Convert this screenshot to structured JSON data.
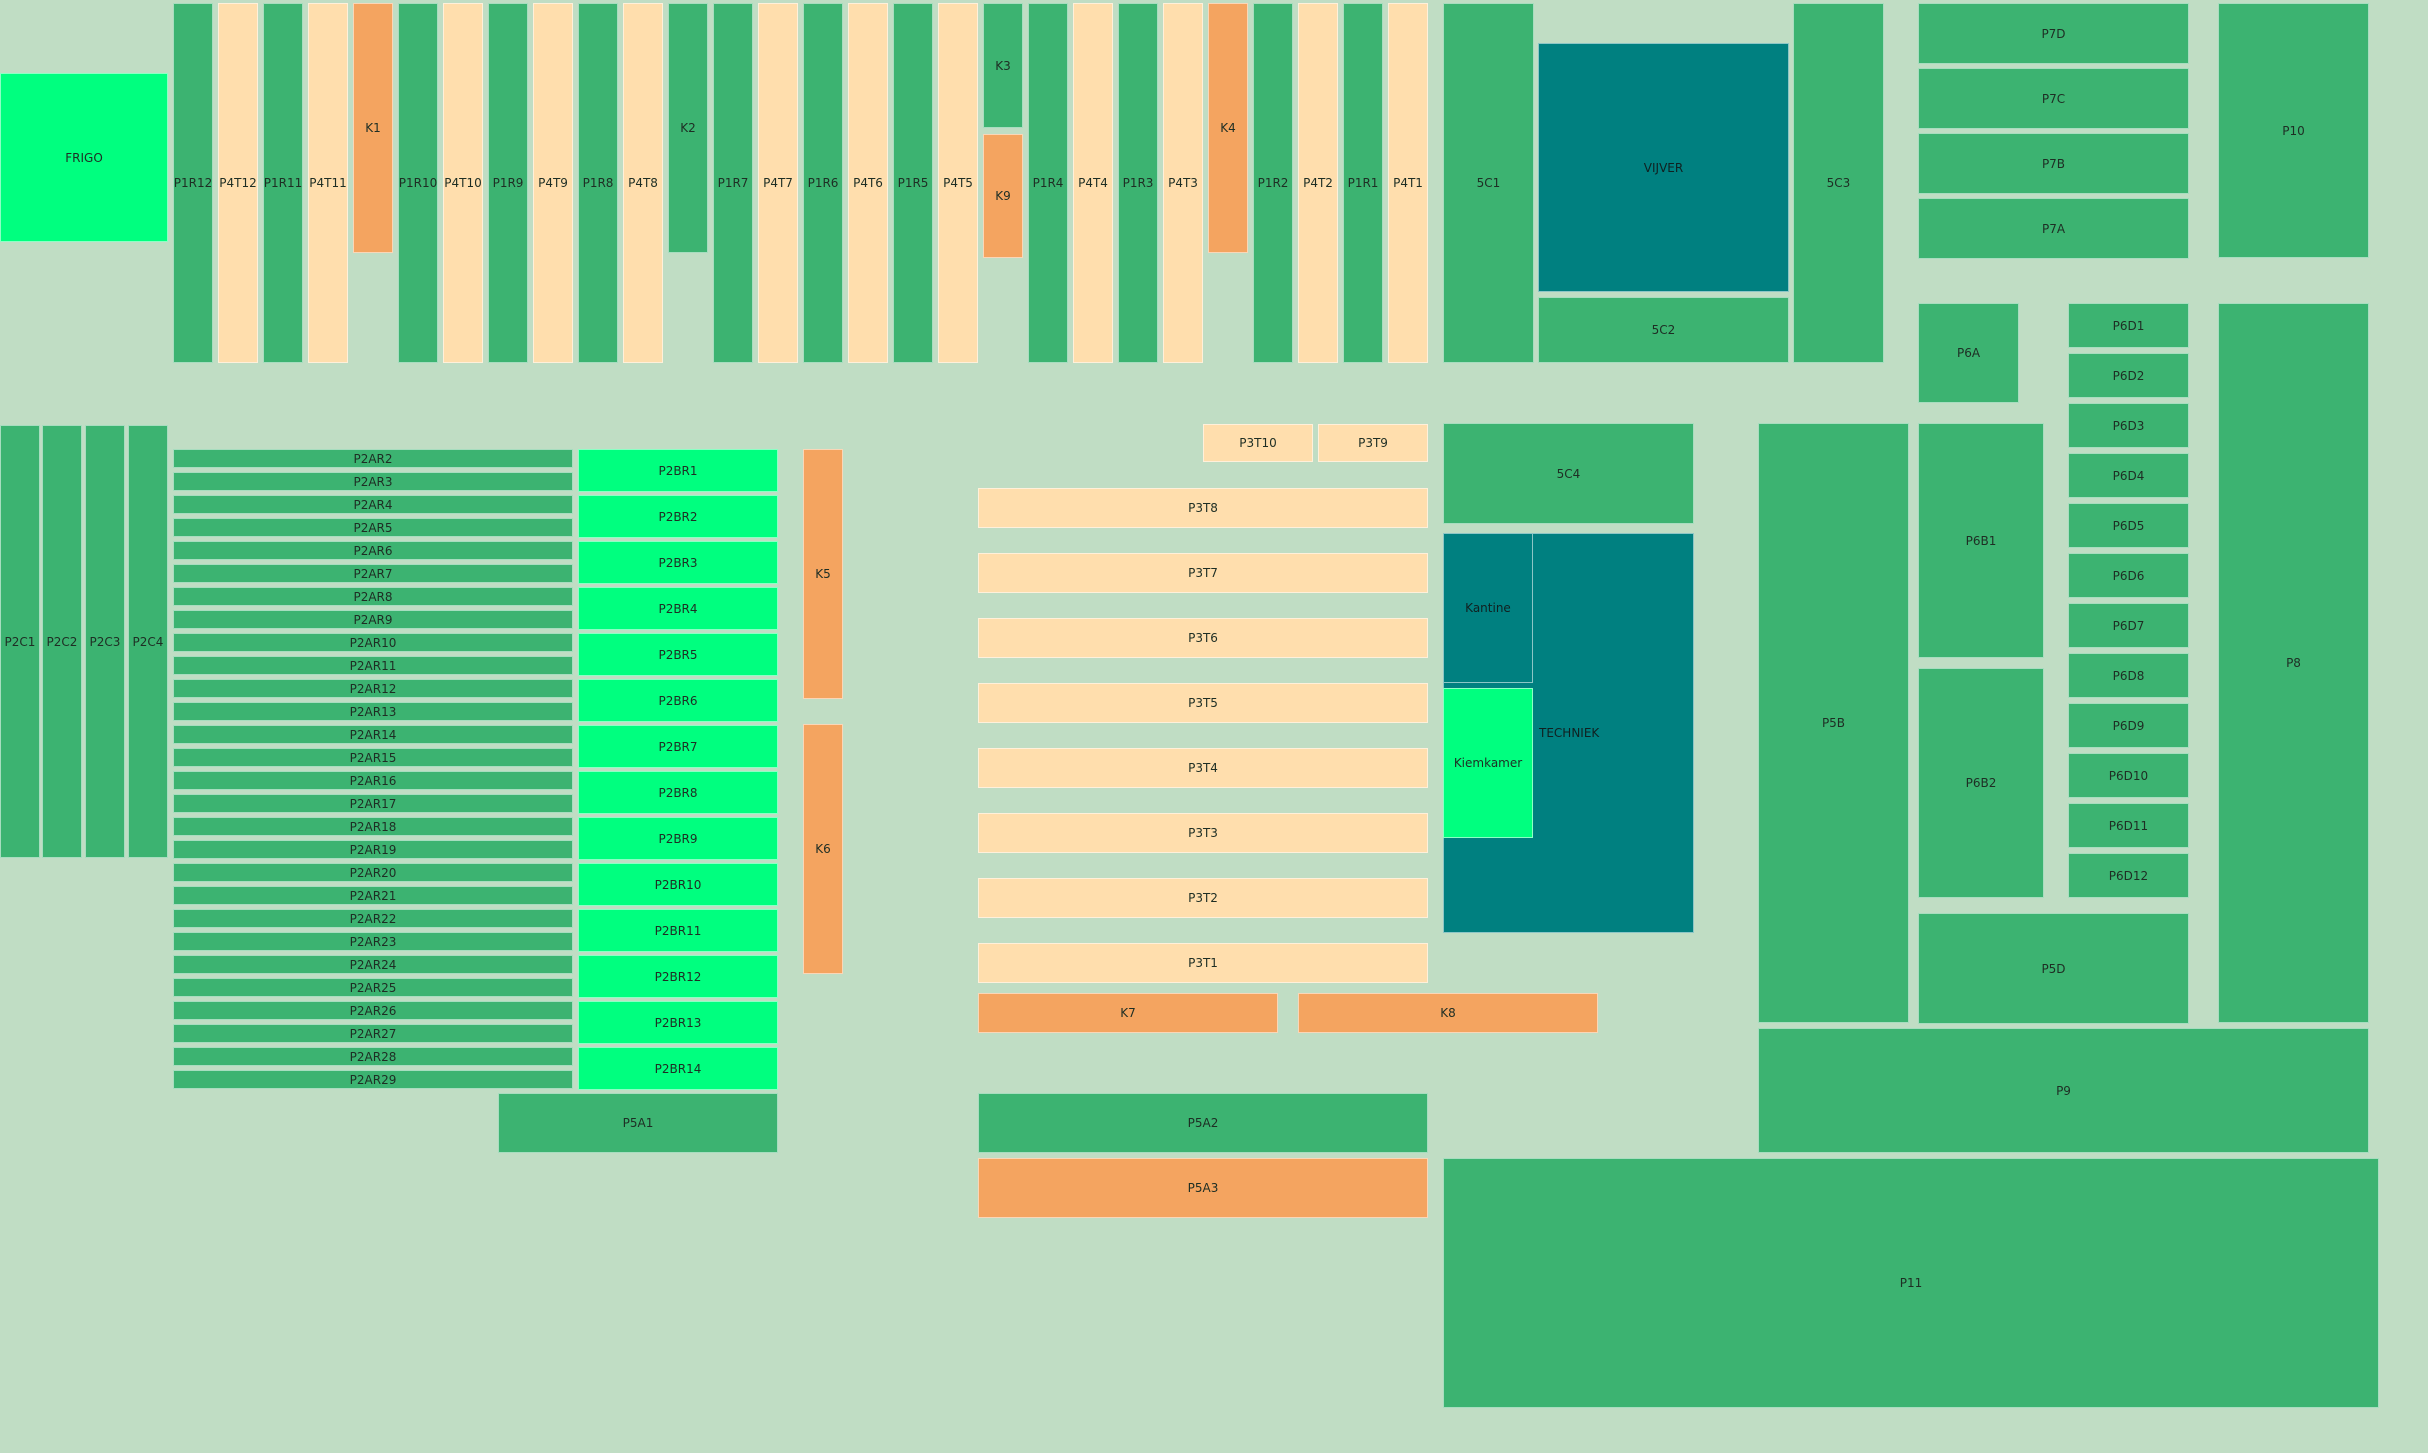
{
  "map": {
    "legend_colors": {
      "green": "#3cb371",
      "spring_green": "#00ff7f",
      "peach": "#ffdead",
      "orange": "#f4a460",
      "teal": "#008080",
      "background": "#c0ddc4"
    },
    "zones": [
      {
        "id": "FRIGO",
        "color": "b"
      },
      {
        "id": "P1R12",
        "color": "g"
      },
      {
        "id": "P4T12",
        "color": "p"
      },
      {
        "id": "P1R11",
        "color": "g"
      },
      {
        "id": "P4T11",
        "color": "p"
      },
      {
        "id": "K1",
        "color": "o"
      },
      {
        "id": "P1R10",
        "color": "g"
      },
      {
        "id": "P4T10",
        "color": "p"
      },
      {
        "id": "P1R9",
        "color": "g"
      },
      {
        "id": "P4T9",
        "color": "p"
      },
      {
        "id": "P1R8",
        "color": "g"
      },
      {
        "id": "P4T8",
        "color": "p"
      },
      {
        "id": "K2",
        "color": "g"
      },
      {
        "id": "P1R7",
        "color": "g"
      },
      {
        "id": "P4T7",
        "color": "p"
      },
      {
        "id": "P1R6",
        "color": "g"
      },
      {
        "id": "P4T6",
        "color": "p"
      },
      {
        "id": "P1R5",
        "color": "g"
      },
      {
        "id": "P4T5",
        "color": "p"
      },
      {
        "id": "K3",
        "color": "g"
      },
      {
        "id": "K9",
        "color": "o"
      },
      {
        "id": "P1R4",
        "color": "g"
      },
      {
        "id": "P4T4",
        "color": "p"
      },
      {
        "id": "P1R3",
        "color": "g"
      },
      {
        "id": "P4T3",
        "color": "p"
      },
      {
        "id": "K4",
        "color": "o"
      },
      {
        "id": "P1R2",
        "color": "g"
      },
      {
        "id": "P4T2",
        "color": "p"
      },
      {
        "id": "P1R1",
        "color": "g"
      },
      {
        "id": "P4T1",
        "color": "p"
      },
      {
        "id": "5C1",
        "color": "g"
      },
      {
        "id": "VIJVER",
        "color": "t"
      },
      {
        "id": "5C2",
        "color": "g"
      },
      {
        "id": "5C3",
        "color": "g"
      },
      {
        "id": "P7D",
        "color": "g"
      },
      {
        "id": "P7C",
        "color": "g"
      },
      {
        "id": "P7B",
        "color": "g"
      },
      {
        "id": "P7A",
        "color": "g"
      },
      {
        "id": "P10",
        "color": "g"
      },
      {
        "id": "P2C1",
        "color": "g"
      },
      {
        "id": "P2C2",
        "color": "g"
      },
      {
        "id": "P2C3",
        "color": "g"
      },
      {
        "id": "P2C4",
        "color": "g"
      },
      {
        "id": "P2AR2",
        "color": "g"
      },
      {
        "id": "P2AR3",
        "color": "g"
      },
      {
        "id": "P2AR4",
        "color": "g"
      },
      {
        "id": "P2AR5",
        "color": "g"
      },
      {
        "id": "P2AR6",
        "color": "g"
      },
      {
        "id": "P2AR7",
        "color": "g"
      },
      {
        "id": "P2AR8",
        "color": "g"
      },
      {
        "id": "P2AR9",
        "color": "g"
      },
      {
        "id": "P2AR10",
        "color": "g"
      },
      {
        "id": "P2AR11",
        "color": "g"
      },
      {
        "id": "P2AR12",
        "color": "g"
      },
      {
        "id": "P2AR13",
        "color": "g"
      },
      {
        "id": "P2AR14",
        "color": "g"
      },
      {
        "id": "P2AR15",
        "color": "g"
      },
      {
        "id": "P2AR16",
        "color": "g"
      },
      {
        "id": "P2AR17",
        "color": "g"
      },
      {
        "id": "P2AR18",
        "color": "g"
      },
      {
        "id": "P2AR19",
        "color": "g"
      },
      {
        "id": "P2AR20",
        "color": "g"
      },
      {
        "id": "P2AR21",
        "color": "g"
      },
      {
        "id": "P2AR22",
        "color": "g"
      },
      {
        "id": "P2AR23",
        "color": "g"
      },
      {
        "id": "P2AR24",
        "color": "g"
      },
      {
        "id": "P2AR25",
        "color": "g"
      },
      {
        "id": "P2AR26",
        "color": "g"
      },
      {
        "id": "P2AR27",
        "color": "g"
      },
      {
        "id": "P2AR28",
        "color": "g"
      },
      {
        "id": "P2AR29",
        "color": "g"
      },
      {
        "id": "P2BR1",
        "color": "b"
      },
      {
        "id": "P2BR2",
        "color": "b"
      },
      {
        "id": "P2BR3",
        "color": "b"
      },
      {
        "id": "P2BR4",
        "color": "b"
      },
      {
        "id": "P2BR5",
        "color": "b"
      },
      {
        "id": "P2BR6",
        "color": "b"
      },
      {
        "id": "P2BR7",
        "color": "b"
      },
      {
        "id": "P2BR8",
        "color": "b"
      },
      {
        "id": "P2BR9",
        "color": "b"
      },
      {
        "id": "P2BR10",
        "color": "b"
      },
      {
        "id": "P2BR11",
        "color": "b"
      },
      {
        "id": "P2BR12",
        "color": "b"
      },
      {
        "id": "P2BR13",
        "color": "b"
      },
      {
        "id": "P2BR14",
        "color": "b"
      },
      {
        "id": "K5",
        "color": "o"
      },
      {
        "id": "K6",
        "color": "o"
      },
      {
        "id": "P3T10",
        "color": "p"
      },
      {
        "id": "P3T9",
        "color": "p"
      },
      {
        "id": "P3T8",
        "color": "p"
      },
      {
        "id": "P3T7",
        "color": "p"
      },
      {
        "id": "P3T6",
        "color": "p"
      },
      {
        "id": "P3T5",
        "color": "p"
      },
      {
        "id": "P3T4",
        "color": "p"
      },
      {
        "id": "P3T3",
        "color": "p"
      },
      {
        "id": "P3T2",
        "color": "p"
      },
      {
        "id": "P3T1",
        "color": "p"
      },
      {
        "id": "K7",
        "color": "o"
      },
      {
        "id": "K8",
        "color": "o"
      },
      {
        "id": "5C4",
        "color": "g"
      },
      {
        "id": "TECHNIEK",
        "color": "t"
      },
      {
        "id": "Kantine",
        "color": "t"
      },
      {
        "id": "Kiemkamer",
        "color": "b"
      },
      {
        "id": "P5B",
        "color": "g"
      },
      {
        "id": "P6A",
        "color": "g"
      },
      {
        "id": "P6B1",
        "color": "g"
      },
      {
        "id": "P6B2",
        "color": "g"
      },
      {
        "id": "P6D1",
        "color": "g"
      },
      {
        "id": "P6D2",
        "color": "g"
      },
      {
        "id": "P6D3",
        "color": "g"
      },
      {
        "id": "P6D4",
        "color": "g"
      },
      {
        "id": "P6D5",
        "color": "g"
      },
      {
        "id": "P6D6",
        "color": "g"
      },
      {
        "id": "P6D7",
        "color": "g"
      },
      {
        "id": "P6D8",
        "color": "g"
      },
      {
        "id": "P6D9",
        "color": "g"
      },
      {
        "id": "P6D10",
        "color": "g"
      },
      {
        "id": "P6D11",
        "color": "g"
      },
      {
        "id": "P6D12",
        "color": "g"
      },
      {
        "id": "P5D",
        "color": "g"
      },
      {
        "id": "P8",
        "color": "g"
      },
      {
        "id": "P9",
        "color": "g"
      },
      {
        "id": "P5A1",
        "color": "g"
      },
      {
        "id": "P5A2",
        "color": "g"
      },
      {
        "id": "P5A3",
        "color": "o"
      },
      {
        "id": "P11",
        "color": "g"
      }
    ]
  }
}
